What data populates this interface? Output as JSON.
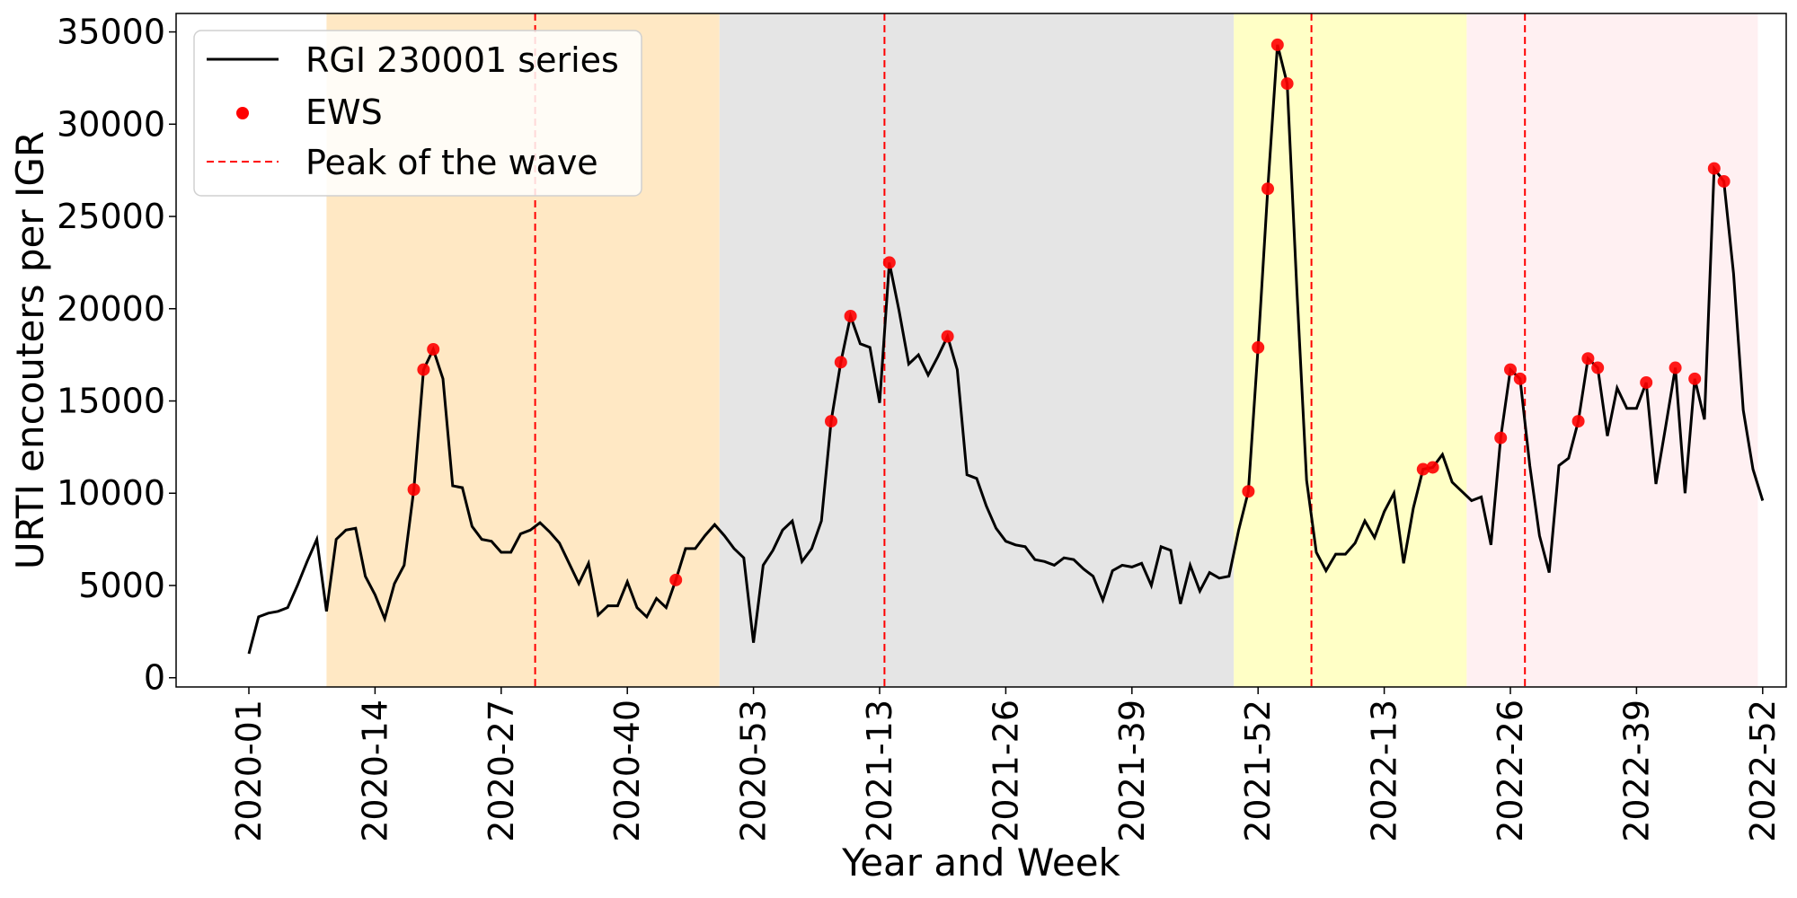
{
  "chart_data": {
    "type": "line",
    "title": "",
    "xlabel": "Year and Week",
    "ylabel": "URTI encouters per IGR",
    "ylim": [
      -500,
      36000
    ],
    "yticks": [
      0,
      5000,
      10000,
      15000,
      20000,
      25000,
      30000,
      35000
    ],
    "xticks": [
      "2020-01",
      "2020-14",
      "2020-27",
      "2020-40",
      "2020-53",
      "2021-13",
      "2021-26",
      "2021-39",
      "2021-52",
      "2022-13",
      "2022-26",
      "2022-39",
      "2022-52"
    ],
    "grid": false,
    "legend_position": "top-left",
    "legend": [
      {
        "label": "RGI 230001 series",
        "kind": "line",
        "color": "#000000"
      },
      {
        "label": "EWS",
        "kind": "marker",
        "color": "#ff0000"
      },
      {
        "label": "Peak of the wave",
        "kind": "dashed-line",
        "color": "#ff0000"
      }
    ],
    "series": [
      {
        "name": "RGI 230001 series",
        "color": "#000000",
        "values": [
          1300,
          3300,
          3500,
          3600,
          3800,
          5000,
          6300,
          7500,
          3600,
          7500,
          8000,
          8100,
          5500,
          4500,
          3200,
          5100,
          6100,
          10200,
          16700,
          17800,
          16200,
          10400,
          10300,
          8200,
          7500,
          7400,
          6800,
          6800,
          7800,
          8000,
          8400,
          7900,
          7300,
          6200,
          5100,
          6200,
          3400,
          3900,
          3900,
          5200,
          3800,
          3300,
          4300,
          3800,
          5300,
          7000,
          7000,
          7700,
          8300,
          7700,
          7000,
          6500,
          1900,
          6100,
          6900,
          8000,
          8500,
          6300,
          7000,
          8500,
          13900,
          17100,
          19600,
          18100,
          17900,
          14900,
          22500,
          19900,
          17000,
          17500,
          16400,
          17400,
          18500,
          16700,
          11000,
          10800,
          9300,
          8100,
          7400,
          7200,
          7100,
          6400,
          6300,
          6100,
          6500,
          6400,
          5900,
          5500,
          4200,
          5800,
          6100,
          6000,
          6200,
          5000,
          7100,
          6900,
          4000,
          6100,
          4700,
          5700,
          5400,
          5500,
          8000,
          10100,
          17900,
          26500,
          34300,
          32200,
          21000,
          10700,
          6800,
          5800,
          6700,
          6700,
          7300,
          8500,
          7600,
          9000,
          10000,
          6200,
          9200,
          11300,
          11400,
          12100,
          10600,
          10100,
          9600,
          9800,
          7200,
          13000,
          16700,
          16200,
          11500,
          7700,
          5700,
          11500,
          11900,
          13900,
          17300,
          16800,
          13100,
          15700,
          14600,
          14600,
          16000,
          10500,
          13600,
          16800,
          10000,
          16200,
          14000,
          27600,
          26900,
          21900,
          14500,
          11300,
          9600
        ]
      }
    ],
    "ews_points": [
      {
        "week_index": 17,
        "value": 10200
      },
      {
        "week_index": 18,
        "value": 16700
      },
      {
        "week_index": 19,
        "value": 17800
      },
      {
        "week_index": 44,
        "value": 5300
      },
      {
        "week_index": 60,
        "value": 13900
      },
      {
        "week_index": 61,
        "value": 17100
      },
      {
        "week_index": 62,
        "value": 19600
      },
      {
        "week_index": 66,
        "value": 22500
      },
      {
        "week_index": 72,
        "value": 18500
      },
      {
        "week_index": 103,
        "value": 10100
      },
      {
        "week_index": 104,
        "value": 17900
      },
      {
        "week_index": 105,
        "value": 26500
      },
      {
        "week_index": 106,
        "value": 34300
      },
      {
        "week_index": 107,
        "value": 32200
      },
      {
        "week_index": 121,
        "value": 11300
      },
      {
        "week_index": 122,
        "value": 11400
      },
      {
        "week_index": 129,
        "value": 13000
      },
      {
        "week_index": 130,
        "value": 16700
      },
      {
        "week_index": 131,
        "value": 16200
      },
      {
        "week_index": 137,
        "value": 13900
      },
      {
        "week_index": 138,
        "value": 17300
      },
      {
        "week_index": 139,
        "value": 16800
      },
      {
        "week_index": 144,
        "value": 16000
      },
      {
        "week_index": 147,
        "value": 16800
      },
      {
        "week_index": 149,
        "value": 16200
      },
      {
        "week_index": 151,
        "value": 27600
      },
      {
        "week_index": 152,
        "value": 26900
      }
    ],
    "wave_peaks": [
      29.5,
      65.5,
      109.5,
      131.5
    ],
    "shaded_regions": [
      {
        "from": 8,
        "to": 48.5,
        "color": "#ffe8c4"
      },
      {
        "from": 48.5,
        "to": 101.5,
        "color": "#e5e5e5"
      },
      {
        "from": 101.5,
        "to": 125.5,
        "color": "#ffffc6"
      },
      {
        "from": 125.5,
        "to": 155.5,
        "color": "#fff0f2"
      }
    ]
  }
}
